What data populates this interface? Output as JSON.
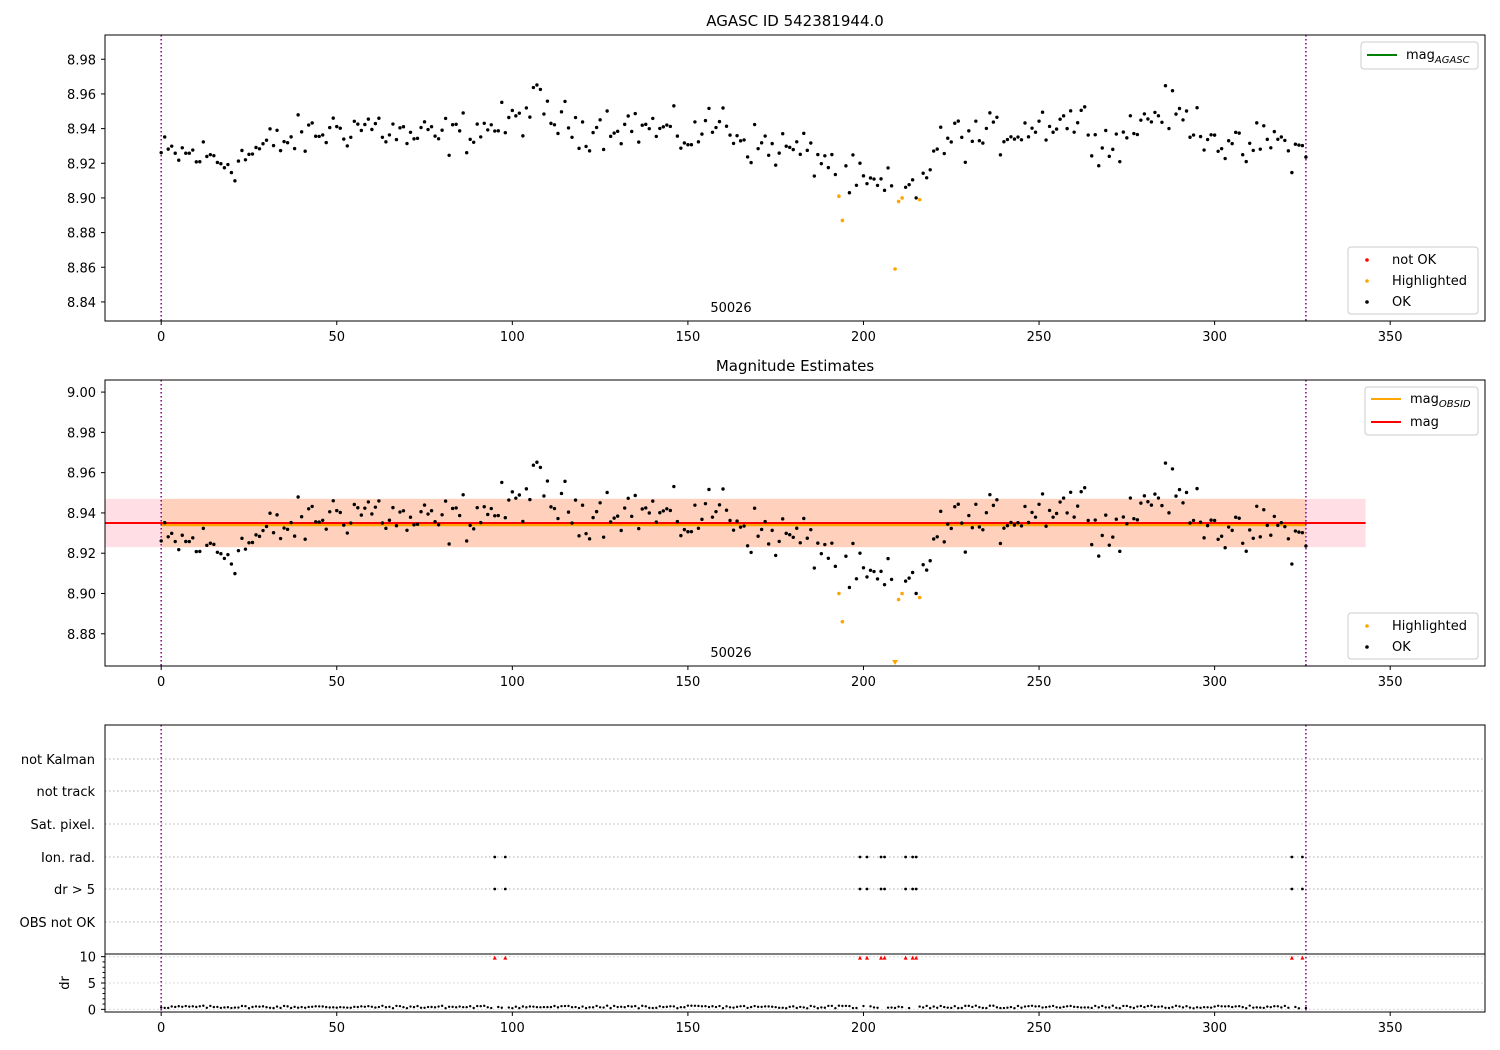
{
  "colors": {
    "ok": "#000000",
    "not_ok": "#ff0000",
    "highlighted": "#ffa500",
    "mag_agasc": "#008000",
    "mag_obsid": "#ffa500",
    "mag": "#ff0000",
    "band_mag": "#ffc0cb",
    "band_obsid": "#ffc8a0",
    "obs_boundary": "#800080"
  },
  "chart_data": [
    {
      "type": "scatter",
      "title": "AGASC ID 542381944.0",
      "xlim": [
        -16,
        377
      ],
      "ylim": [
        8.829,
        8.994
      ],
      "xticks": [
        0,
        50,
        100,
        150,
        200,
        250,
        300,
        350
      ],
      "yticks": [
        8.84,
        8.86,
        8.88,
        8.9,
        8.92,
        8.94,
        8.96,
        8.98
      ],
      "grid": false,
      "annotation": "50026",
      "obs_boundaries": [
        0,
        326
      ],
      "legend_lines": {
        "position": "top-right",
        "entries": [
          {
            "label": "mag",
            "subscript": "AGASC",
            "color": "#008000"
          }
        ]
      },
      "legend_points": {
        "position": "bottom-right",
        "entries": [
          {
            "label": "not OK",
            "color": "#ff0000"
          },
          {
            "label": "Highlighted",
            "color": "#ffa500"
          },
          {
            "label": "OK",
            "color": "#000000"
          }
        ]
      },
      "highlighted_points": [
        [
          193,
          8.901
        ],
        [
          194,
          8.887
        ],
        [
          209,
          8.859
        ],
        [
          210,
          8.898
        ],
        [
          211,
          8.9
        ],
        [
          216,
          8.899
        ]
      ],
      "not_ok_points": []
    },
    {
      "type": "scatter",
      "title": "Magnitude Estimates",
      "xlim": [
        -16,
        377
      ],
      "ylim": [
        8.864,
        9.006
      ],
      "xticks": [
        0,
        50,
        100,
        150,
        200,
        250,
        300,
        350
      ],
      "yticks": [
        8.88,
        8.9,
        8.92,
        8.94,
        8.96,
        8.98,
        9.0
      ],
      "grid": false,
      "annotation": "50026",
      "obs_boundaries": [
        0,
        326
      ],
      "mag": 8.935,
      "mag_band": [
        8.923,
        8.947
      ],
      "mag_obsid": 8.934,
      "obsid_band": [
        8.923,
        8.947
      ],
      "band_x": [
        -16,
        343
      ],
      "obsid_band_x": [
        0,
        326
      ],
      "legend_lines": {
        "position": "top-right",
        "entries": [
          {
            "label": "mag",
            "subscript": "OBSID",
            "color": "#ffa500"
          },
          {
            "label": "mag",
            "subscript": "",
            "color": "#ff0000"
          }
        ]
      },
      "legend_points": {
        "position": "bottom-right",
        "entries": [
          {
            "label": "Highlighted",
            "color": "#ffa500"
          },
          {
            "label": "OK",
            "color": "#000000"
          }
        ]
      },
      "highlighted_points": [
        [
          193,
          8.9
        ],
        [
          194,
          8.886
        ],
        [
          210,
          8.897
        ],
        [
          211,
          8.9
        ],
        [
          216,
          8.898
        ]
      ],
      "off_scale_points": [
        [
          209,
          8.865
        ]
      ]
    },
    {
      "type": "scatter",
      "title": "",
      "xlim": [
        -16,
        377
      ],
      "categories": [
        "not Kalman",
        "not track",
        "Sat. pixel.",
        "Ion. rad.",
        "dr > 5",
        "OBS not OK"
      ],
      "flags": {
        "Ion. rad.": [
          95,
          98,
          199,
          201,
          205,
          206,
          212,
          214,
          215,
          322,
          325
        ],
        "dr > 5": [
          95,
          98,
          199,
          201,
          205,
          206,
          212,
          214,
          215,
          322,
          325
        ]
      },
      "dr_ylabel": "dr",
      "dr_ylim": [
        -0.5,
        10.5
      ],
      "dr_yticks": [
        0,
        5,
        10
      ],
      "dr_clipped": [
        95,
        98,
        199,
        201,
        205,
        206,
        212,
        214,
        215,
        322,
        325
      ],
      "xticks": [
        0,
        50,
        100,
        150,
        200,
        250,
        300,
        350
      ],
      "obs_boundaries": [
        0,
        326
      ]
    }
  ]
}
